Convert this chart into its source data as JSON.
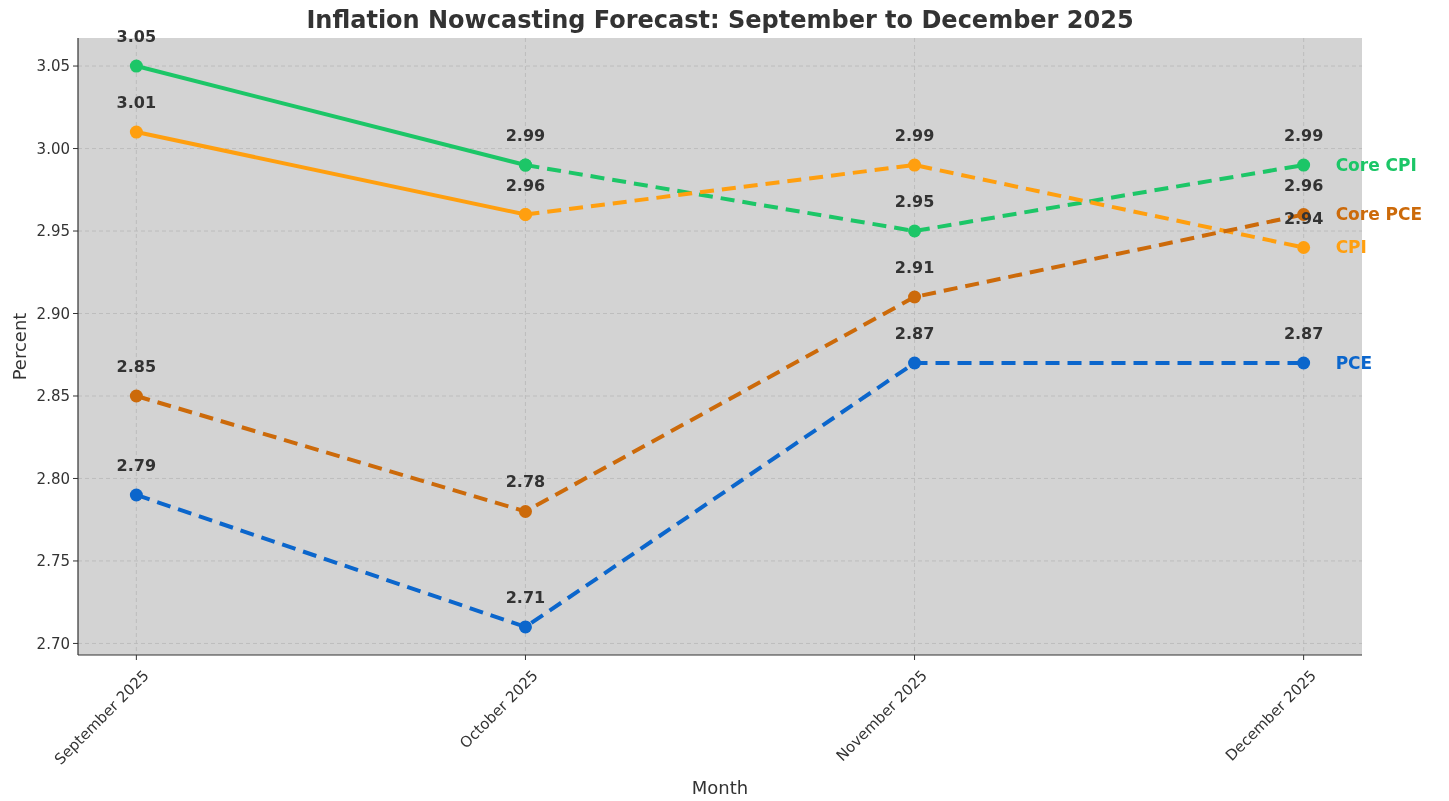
{
  "chart_data": {
    "type": "line",
    "title": "Inflation Nowcasting Forecast: September to December 2025",
    "xlabel": "Month",
    "ylabel": "Percent",
    "categories": [
      "September 2025",
      "October 2025",
      "November 2025",
      "December 2025"
    ],
    "series": [
      {
        "color": "#1cc667",
        "line_style": "solid",
        "values": [
          3.05,
          2.99,
          null,
          null
        ],
        "value_labels": [
          "3.05",
          null,
          null,
          null
        ]
      },
      {
        "name": "Core CPI",
        "color": "#1cc667",
        "line_style": "dashed",
        "values": [
          null,
          2.99,
          2.95,
          2.99
        ],
        "value_labels": [
          null,
          "2.99",
          "2.95",
          "2.99"
        ]
      },
      {
        "color": "#ff9f0f",
        "line_style": "solid",
        "values": [
          3.01,
          2.96,
          null,
          null
        ],
        "value_labels": [
          "3.01",
          null,
          null,
          null
        ]
      },
      {
        "name": "CPI",
        "color": "#ff9f0f",
        "line_style": "dashed",
        "values": [
          null,
          2.96,
          2.99,
          2.94
        ],
        "value_labels": [
          null,
          "2.96",
          "2.99",
          "2.94"
        ]
      },
      {
        "name": "Core PCE",
        "color": "#cc6a0a",
        "line_style": "dashed",
        "values": [
          2.85,
          2.78,
          2.91,
          2.96
        ],
        "value_labels": [
          "2.85",
          "2.78",
          "2.91",
          "2.96"
        ]
      },
      {
        "name": "PCE",
        "color": "#0b66cc",
        "line_style": "dashed",
        "values": [
          2.79,
          2.71,
          2.87,
          2.87
        ],
        "value_labels": [
          "2.79",
          "2.71",
          "2.87",
          "2.87"
        ]
      }
    ],
    "ylim": [
      2.693,
      3.067
    ],
    "yticks": [
      {
        "value": 2.7,
        "label": "2.70"
      },
      {
        "value": 2.75,
        "label": "2.75"
      },
      {
        "value": 2.8,
        "label": "2.80"
      },
      {
        "value": 2.85,
        "label": "2.85"
      },
      {
        "value": 2.9,
        "label": "2.90"
      },
      {
        "value": 2.95,
        "label": "2.95"
      },
      {
        "value": 3.0,
        "label": "3.00"
      },
      {
        "value": 3.05,
        "label": "3.05"
      }
    ],
    "grid": true,
    "marker": "circle"
  }
}
